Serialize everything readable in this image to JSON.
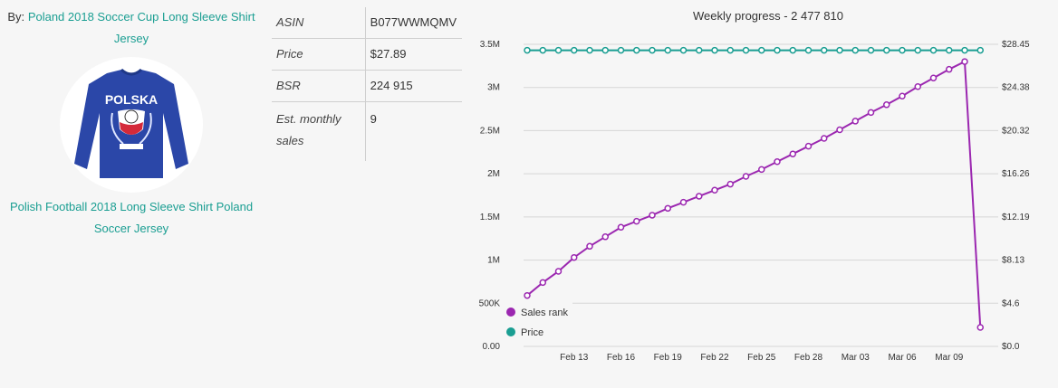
{
  "product": {
    "by_label": "By:",
    "brand_link": "Poland 2018 Soccer Cup Long Sleeve Shirt Jersey",
    "title_link": "Polish Football 2018 Long Sleeve Shirt Poland Soccer Jersey",
    "shirt_text_top": "POLSKA",
    "image_icon": "shirt-image-icon",
    "shirt_color": "#2b47a8"
  },
  "info": {
    "rows": [
      {
        "key": "ASIN",
        "value": "B077WWMQMV"
      },
      {
        "key": "Price",
        "value": "$27.89"
      },
      {
        "key": "BSR",
        "value": "224 915"
      },
      {
        "key": "Est. monthly sales",
        "value": "9"
      }
    ]
  },
  "chart_data": {
    "type": "line",
    "title": "Weekly progress - 2 477 810",
    "x_ticks": [
      "Feb 13",
      "Feb 16",
      "Feb 19",
      "Feb 22",
      "Feb 25",
      "Feb 28",
      "Mar 03",
      "Mar 06",
      "Mar 09"
    ],
    "y_left_ticks": [
      "0.00",
      "500K",
      "1M",
      "1.5M",
      "2M",
      "2.5M",
      "3M",
      "3.5M"
    ],
    "y_left_range": [
      0,
      3500000
    ],
    "y_right_ticks": [
      "$0.0",
      "$4.6",
      "$8.13",
      "$12.19",
      "$16.26",
      "$20.32",
      "$24.38",
      "$28.45"
    ],
    "y_right_range": [
      0,
      28.45
    ],
    "legend_position": "bottom-left",
    "grid": true,
    "series": [
      {
        "name": "Sales rank",
        "color": "#9b27b0",
        "axis": "left",
        "x": [
          "Feb 10",
          "Feb 11",
          "Feb 12",
          "Feb 13",
          "Feb 14",
          "Feb 15",
          "Feb 16",
          "Feb 17",
          "Feb 18",
          "Feb 19",
          "Feb 20",
          "Feb 21",
          "Feb 22",
          "Feb 23",
          "Feb 24",
          "Feb 25",
          "Feb 26",
          "Feb 27",
          "Feb 28",
          "Mar 01",
          "Mar 02",
          "Mar 03",
          "Mar 04",
          "Mar 05",
          "Mar 06",
          "Mar 07",
          "Mar 08",
          "Mar 09",
          "Mar 10",
          "Mar 11"
        ],
        "values": [
          590000,
          740000,
          870000,
          1030000,
          1160000,
          1270000,
          1380000,
          1450000,
          1520000,
          1600000,
          1670000,
          1740000,
          1810000,
          1880000,
          1970000,
          2050000,
          2140000,
          2230000,
          2320000,
          2410000,
          2510000,
          2610000,
          2710000,
          2800000,
          2900000,
          3010000,
          3110000,
          3210000,
          3300000,
          220000
        ]
      },
      {
        "name": "Price",
        "color": "#1a9e92",
        "axis": "right",
        "x": [
          "Feb 10",
          "Feb 11",
          "Feb 12",
          "Feb 13",
          "Feb 14",
          "Feb 15",
          "Feb 16",
          "Feb 17",
          "Feb 18",
          "Feb 19",
          "Feb 20",
          "Feb 21",
          "Feb 22",
          "Feb 23",
          "Feb 24",
          "Feb 25",
          "Feb 26",
          "Feb 27",
          "Feb 28",
          "Mar 01",
          "Mar 02",
          "Mar 03",
          "Mar 04",
          "Mar 05",
          "Mar 06",
          "Mar 07",
          "Mar 08",
          "Mar 09",
          "Mar 10",
          "Mar 11"
        ],
        "values": [
          27.89,
          27.89,
          27.89,
          27.89,
          27.89,
          27.89,
          27.89,
          27.89,
          27.89,
          27.89,
          27.89,
          27.89,
          27.89,
          27.89,
          27.89,
          27.89,
          27.89,
          27.89,
          27.89,
          27.89,
          27.89,
          27.89,
          27.89,
          27.89,
          27.89,
          27.89,
          27.89,
          27.89,
          27.89,
          27.89
        ]
      }
    ]
  }
}
